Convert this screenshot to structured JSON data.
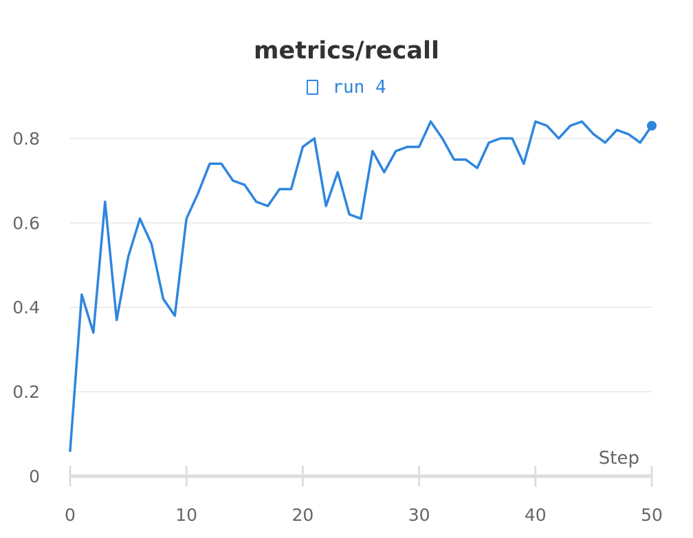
{
  "chart_data": {
    "type": "line",
    "title": "metrics/recall",
    "xlabel": "Step",
    "ylabel": "",
    "xlim": [
      0,
      50
    ],
    "ylim": [
      0,
      0.9
    ],
    "xticks": [
      0,
      10,
      20,
      30,
      40,
      50
    ],
    "yticks": [
      0,
      0.2,
      0.4,
      0.6,
      0.8
    ],
    "ytick_labels": [
      "0",
      "0.2",
      "0.4",
      "0.6",
      "0.8"
    ],
    "grid": true,
    "legend_position": "top-center",
    "series": [
      {
        "name": "run 4",
        "color": "#2e86de",
        "x": [
          0,
          1,
          2,
          3,
          4,
          5,
          6,
          7,
          8,
          9,
          10,
          11,
          12,
          13,
          14,
          15,
          16,
          17,
          18,
          19,
          20,
          21,
          22,
          23,
          24,
          25,
          26,
          27,
          28,
          29,
          30,
          31,
          32,
          33,
          34,
          35,
          36,
          37,
          38,
          39,
          40,
          41,
          42,
          43,
          44,
          45,
          46,
          47,
          48,
          49,
          50
        ],
        "values": [
          0.06,
          0.43,
          0.34,
          0.65,
          0.37,
          0.52,
          0.61,
          0.55,
          0.42,
          0.38,
          0.61,
          0.67,
          0.74,
          0.74,
          0.7,
          0.69,
          0.65,
          0.64,
          0.68,
          0.68,
          0.78,
          0.8,
          0.64,
          0.72,
          0.62,
          0.61,
          0.77,
          0.72,
          0.77,
          0.78,
          0.78,
          0.84,
          0.8,
          0.75,
          0.75,
          0.73,
          0.79,
          0.8,
          0.8,
          0.74,
          0.84,
          0.83,
          0.8,
          0.83,
          0.84,
          0.81,
          0.79,
          0.82,
          0.81,
          0.79,
          0.83
        ]
      }
    ]
  }
}
